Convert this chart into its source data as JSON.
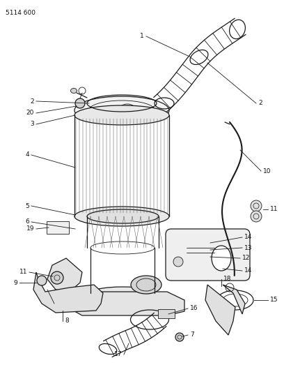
{
  "title": "5114 600",
  "bg_color": "#ffffff",
  "line_color": "#1a1a1a",
  "label_color": "#111111",
  "fig_width": 4.08,
  "fig_height": 5.33,
  "dpi": 100
}
